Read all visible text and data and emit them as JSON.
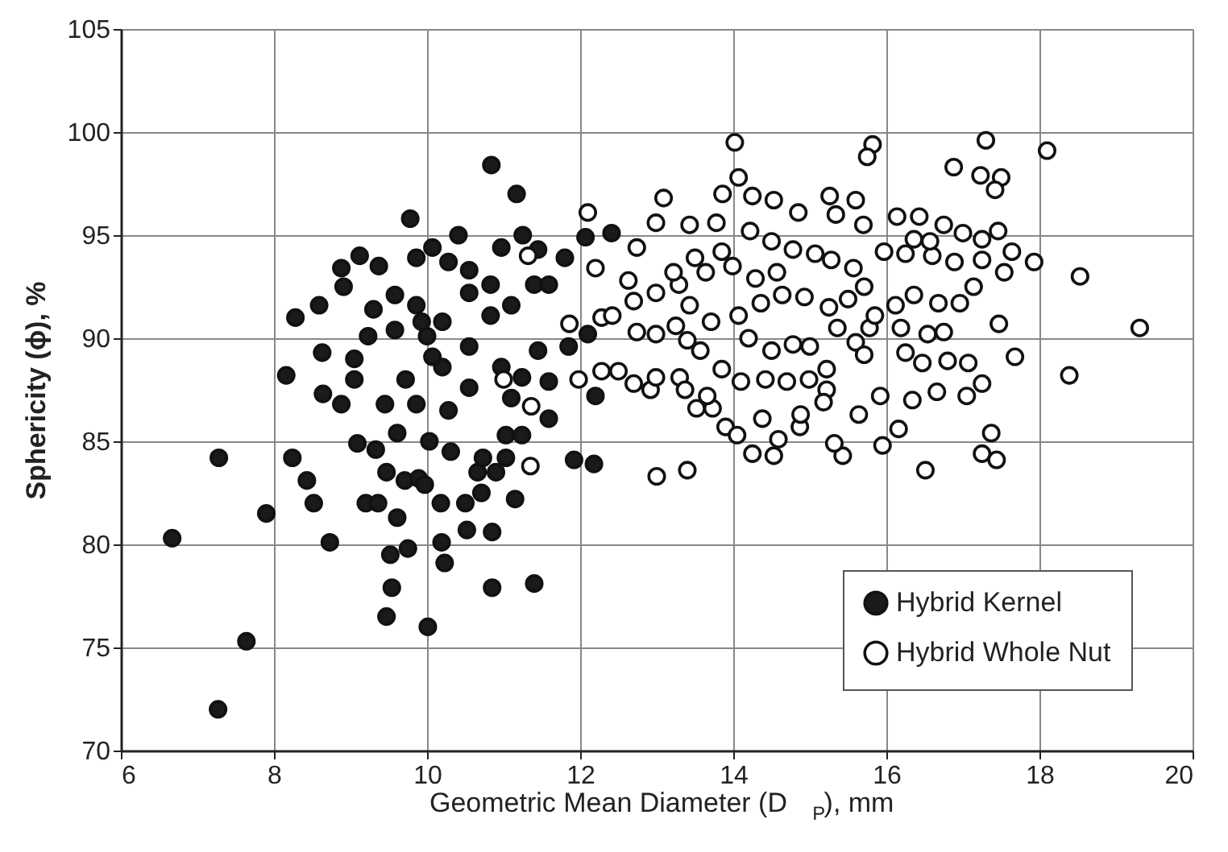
{
  "chart_data": {
    "type": "scatter",
    "xlabel": "Geometric Mean Diameter (D$_{P}$), mm",
    "ylabel": "Sphericity (ϕ), %",
    "xlim": [
      6,
      20
    ],
    "xticks": [
      6,
      8,
      10,
      12,
      14,
      16,
      18,
      20
    ],
    "ylim": [
      70,
      105
    ],
    "yticks": [
      70,
      75,
      80,
      85,
      90,
      95,
      100,
      105
    ],
    "grid": true,
    "legend": "bottom right",
    "marker": "circle",
    "series": [
      {
        "name": "Hybrid Kernel",
        "color": "#1a1a1a",
        "x": [
          6.67,
          7.28,
          7.27,
          7.64,
          7.9,
          8.16,
          8.24,
          8.43,
          8.52,
          8.73,
          8.28,
          8.64,
          9.12,
          9.78,
          10.84,
          11.17,
          11.4,
          10.85,
          10.01,
          9.47,
          9.54,
          9.52,
          9.75,
          10.23,
          10.19,
          10.52,
          10.85,
          10.18,
          10.5,
          10.71,
          11.15,
          11.92,
          12.18,
          12.2,
          12.1,
          12.41,
          12.07,
          9.2,
          9.36,
          9.61,
          9.09,
          9.33,
          9.47,
          9.71,
          9.89,
          9.97,
          10.66,
          10.9,
          11.03,
          10.73,
          10.31,
          10.03,
          9.61,
          8.88,
          9.05,
          8.63,
          8.59,
          8.88,
          8.91,
          9.37,
          9.3,
          9.23,
          9.58,
          9.86,
          10.0,
          10.2,
          9.86,
          10.07,
          10.41,
          10.28,
          10.55,
          10.83,
          11.1,
          11.4,
          10.97,
          11.25,
          11.45,
          11.59,
          11.45,
          11.59,
          11.59,
          11.24,
          11.1,
          10.97,
          10.55,
          10.28,
          9.86,
          9.45,
          9.72,
          10.2,
          10.55,
          10.83,
          10.55,
          11.03,
          11.24,
          11.8,
          11.85,
          10.07,
          9.93,
          9.58,
          9.05
        ],
        "values": [
          80.3,
          84.2,
          72.0,
          75.3,
          81.5,
          88.2,
          84.2,
          83.1,
          82.0,
          80.1,
          91.0,
          87.3,
          94.0,
          95.8,
          98.4,
          97.0,
          78.1,
          77.9,
          76.0,
          76.5,
          77.9,
          79.5,
          79.8,
          79.1,
          80.1,
          80.7,
          80.6,
          82.0,
          82.0,
          82.5,
          82.2,
          84.1,
          83.9,
          87.2,
          90.2,
          95.1,
          94.9,
          82.0,
          82.0,
          81.3,
          84.9,
          84.6,
          83.5,
          83.1,
          83.2,
          82.9,
          83.5,
          83.5,
          84.2,
          84.2,
          84.5,
          85.0,
          85.4,
          86.8,
          88.0,
          89.3,
          91.6,
          93.4,
          92.5,
          93.5,
          91.4,
          90.1,
          90.4,
          91.6,
          90.1,
          90.8,
          93.9,
          94.4,
          95.0,
          93.7,
          92.2,
          91.1,
          91.6,
          92.6,
          94.4,
          95.0,
          94.3,
          92.6,
          89.4,
          87.9,
          86.1,
          88.1,
          87.1,
          88.6,
          87.6,
          86.5,
          86.8,
          86.8,
          88.0,
          88.6,
          89.6,
          92.6,
          93.3,
          85.3,
          85.3,
          93.9,
          89.6,
          89.1,
          90.8,
          92.1,
          89.0
        ]
      },
      {
        "name": "Hybrid Whole Nut",
        "color": "#ffffff",
        "x": [
          14.02,
          15.82,
          15.75,
          17.3,
          18.1,
          16.88,
          17.23,
          17.5,
          17.42,
          18.53,
          19.31,
          17.47,
          17.68,
          18.39,
          17.37,
          17.25,
          17.44,
          16.51,
          16.16,
          15.95,
          15.43,
          15.32,
          14.53,
          14.25,
          13.4,
          13.0,
          12.2,
          12.1,
          11.98,
          11.86,
          11.36,
          11.35,
          11.0,
          11.32,
          13.09,
          12.99,
          13.43,
          12.74,
          12.63,
          12.99,
          12.7,
          12.28,
          12.42,
          12.74,
          12.99,
          12.28,
          12.5,
          12.7,
          12.92,
          12.99,
          13.3,
          13.37,
          13.52,
          13.73,
          13.66,
          13.9,
          14.05,
          14.38,
          14.59,
          14.87,
          14.88,
          15.22,
          15.18,
          15.64,
          15.92,
          16.34,
          16.66,
          17.05,
          17.25,
          17.07,
          16.8,
          16.47,
          16.25,
          16.19,
          16.54,
          16.75,
          16.96,
          16.68,
          16.36,
          16.12,
          17.14,
          17.54,
          17.93,
          17.64,
          17.25,
          16.89,
          16.6,
          16.25,
          15.97,
          16.36,
          16.57,
          16.75,
          16.43,
          16.14,
          17.0,
          17.46,
          17.25,
          15.7,
          15.6,
          15.26,
          15.34,
          14.85,
          14.53,
          14.25,
          13.86,
          14.07,
          13.78,
          14.22,
          14.5,
          14.78,
          15.07,
          15.28,
          15.57,
          15.71,
          15.5,
          15.25,
          14.93,
          14.64,
          14.36,
          14.07,
          13.71,
          13.43,
          13.29,
          13.64,
          13.99,
          14.29,
          14.57,
          13.85,
          13.5,
          13.22,
          13.25,
          13.4,
          13.57,
          13.85,
          14.1,
          14.42,
          14.7,
          14.99,
          15.22,
          15.0,
          14.78,
          14.5,
          14.2,
          15.36,
          15.6,
          15.71,
          15.78,
          15.85
        ],
        "values": [
          99.5,
          99.4,
          98.8,
          99.6,
          99.1,
          98.3,
          97.9,
          97.8,
          97.2,
          93.0,
          90.5,
          90.7,
          89.1,
          88.2,
          85.4,
          84.4,
          84.1,
          83.6,
          85.6,
          84.8,
          84.3,
          84.9,
          84.3,
          84.4,
          83.6,
          83.3,
          93.4,
          96.1,
          88.0,
          90.7,
          86.7,
          83.8,
          88.0,
          94.0,
          96.8,
          95.6,
          95.5,
          94.4,
          92.8,
          92.2,
          91.8,
          91.0,
          91.1,
          90.3,
          90.2,
          88.4,
          88.4,
          87.8,
          87.5,
          88.1,
          88.1,
          87.5,
          86.6,
          86.6,
          87.2,
          85.7,
          85.3,
          86.1,
          85.1,
          85.7,
          86.3,
          87.5,
          86.9,
          86.3,
          87.2,
          87.0,
          87.4,
          87.2,
          87.8,
          88.8,
          88.9,
          88.8,
          89.3,
          90.5,
          90.2,
          90.3,
          91.7,
          91.7,
          92.1,
          91.6,
          92.5,
          93.2,
          93.7,
          94.2,
          93.8,
          93.7,
          94.0,
          94.1,
          94.2,
          94.8,
          94.7,
          95.5,
          95.9,
          95.9,
          95.1,
          95.2,
          94.8,
          95.5,
          96.7,
          96.9,
          96.0,
          96.1,
          96.7,
          96.9,
          97.0,
          97.8,
          95.6,
          95.2,
          94.7,
          94.3,
          94.1,
          93.8,
          93.4,
          92.5,
          91.9,
          91.5,
          92.0,
          92.1,
          91.7,
          91.1,
          90.8,
          91.6,
          92.6,
          93.2,
          93.5,
          92.9,
          93.2,
          94.2,
          93.9,
          93.2,
          90.6,
          89.9,
          89.4,
          88.5,
          87.9,
          88.0,
          87.9,
          88.0,
          88.5,
          89.6,
          89.7,
          89.4,
          90.0,
          90.5,
          89.8,
          89.2,
          90.5,
          91.1
        ]
      }
    ]
  }
}
